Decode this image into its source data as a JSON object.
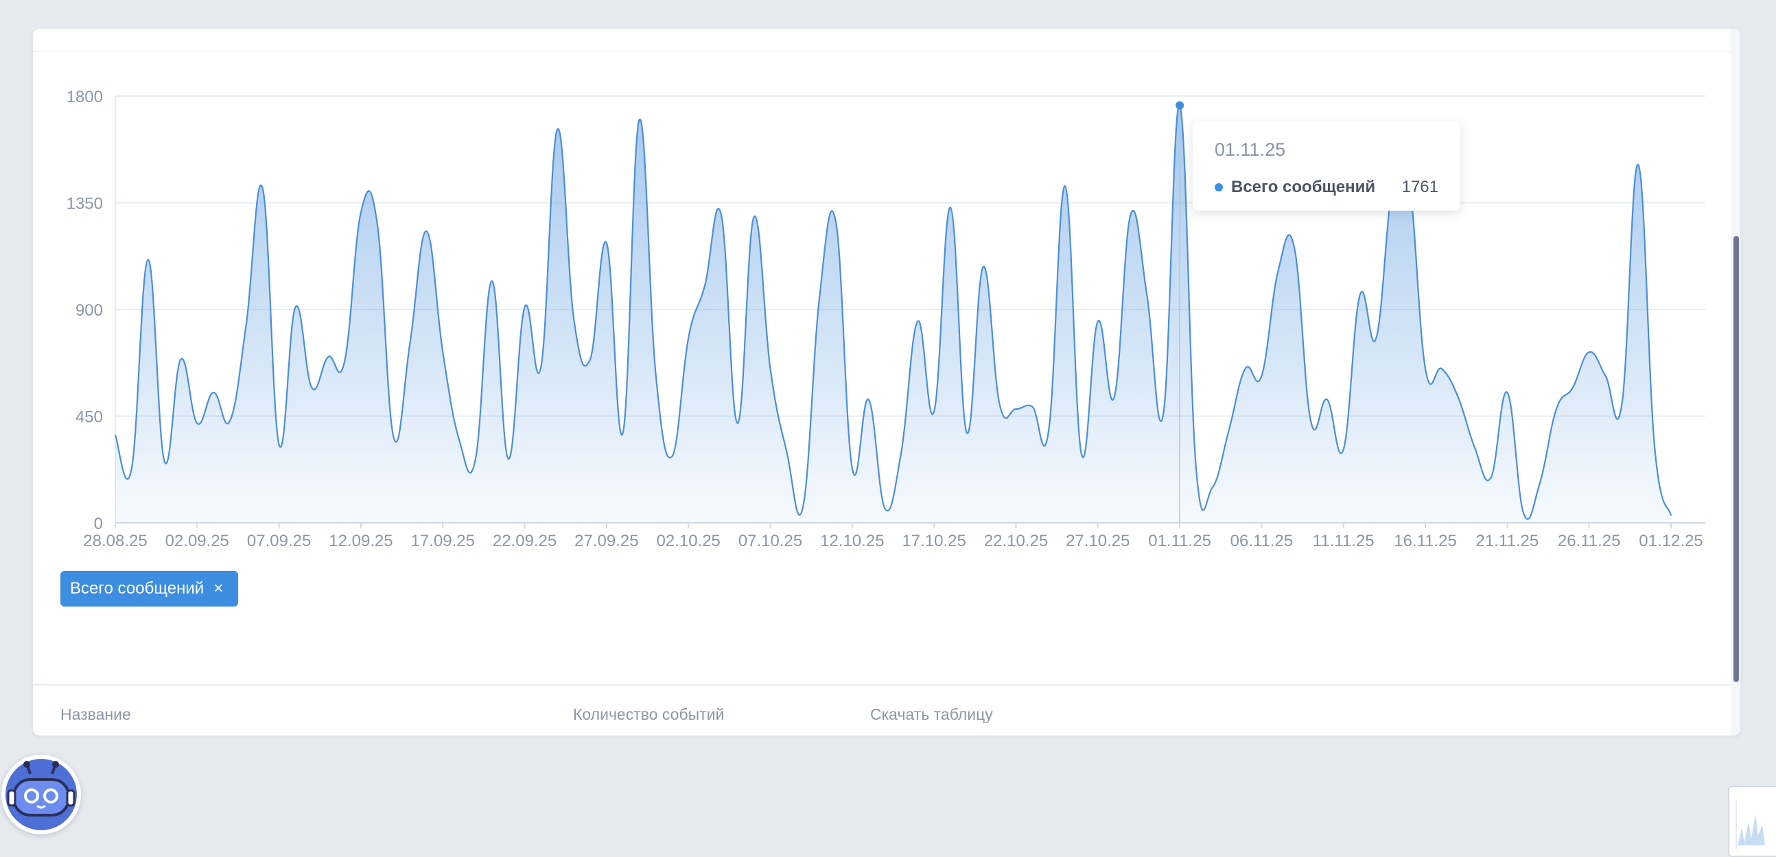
{
  "colors": {
    "accent": "#3d8de0",
    "line": "#4a8fd9",
    "background": "#e6eaef",
    "card": "#ffffff"
  },
  "chart_data": {
    "type": "area",
    "start_date": "2025-08-28",
    "x_tick_labels": [
      "28.08.25",
      "02.09.25",
      "07.09.25",
      "12.09.25",
      "17.09.25",
      "22.09.25",
      "27.09.25",
      "02.10.25",
      "07.10.25",
      "12.10.25",
      "17.10.25",
      "22.10.25",
      "27.10.25",
      "01.11.25",
      "06.11.25",
      "11.11.25",
      "16.11.25",
      "21.11.25",
      "26.11.25",
      "01.12.25"
    ],
    "y_tick_labels": [
      "0",
      "450",
      "900",
      "1350",
      "1800"
    ],
    "ylim": [
      0,
      1800
    ],
    "grid": true,
    "series": [
      {
        "name": "Всего сообщений",
        "values": [
          370,
          230,
          1110,
          260,
          690,
          420,
          550,
          430,
          840,
          1410,
          330,
          910,
          570,
          700,
          680,
          1310,
          1260,
          360,
          760,
          1230,
          720,
          350,
          270,
          1020,
          270,
          910,
          660,
          1660,
          860,
          690,
          1180,
          380,
          1700,
          630,
          280,
          780,
          1000,
          1300,
          420,
          1290,
          650,
          300,
          70,
          950,
          1270,
          230,
          520,
          60,
          300,
          850,
          470,
          1330,
          380,
          1080,
          500,
          480,
          490,
          390,
          1420,
          290,
          850,
          530,
          1300,
          960,
          460,
          1761,
          230,
          150,
          390,
          650,
          620,
          1060,
          1160,
          430,
          520,
          310,
          960,
          780,
          1420,
          1440,
          650,
          650,
          530,
          320,
          190,
          550,
          40,
          170,
          480,
          570,
          720,
          620,
          500,
          1510,
          320,
          30
        ]
      }
    ],
    "tooltip": {
      "date": "01.11.25",
      "series_name": "Всего сообщений",
      "value": "1761"
    }
  },
  "legend": {
    "chip_label": "Всего сообщений",
    "chip_close": "×"
  },
  "table": {
    "col_name": "Название",
    "col_events": "Количество событий",
    "col_download": "Скачать таблицу"
  }
}
